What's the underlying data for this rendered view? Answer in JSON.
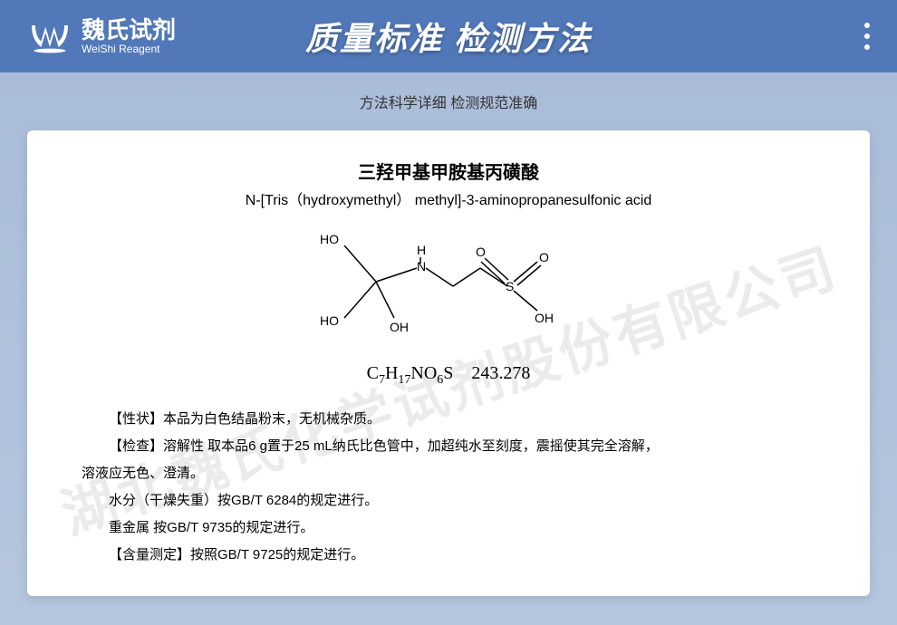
{
  "header": {
    "logo_cn": "魏氏试剂",
    "logo_en": "WeiShi Reagent",
    "title": "质量标准 检测方法"
  },
  "subtitle": "方法科学详细 检测规范准确",
  "compound": {
    "name_cn": "三羟甲基甲胺基丙磺酸",
    "name_en": "N-[Tris（hydroxymethyl） methyl]-3-aminopropanesulfonic acid",
    "formula_html": "C<sub>7</sub>H<sub>17</sub>NO<sub>6</sub>S 243.278",
    "structure_labels": {
      "ho1": "HO",
      "ho2": "HO",
      "oh": "OH",
      "nh": "H",
      "n": "N",
      "so_o1": "O",
      "so_o2": "O",
      "so_oh": "OH",
      "s": "S"
    }
  },
  "info": {
    "p1": "【性状】本品为白色结晶粉末，无机械杂质。",
    "p2": "【检查】溶解性  取本品6 g置于25 mL纳氏比色管中，加超纯水至刻度，震摇使其完全溶解，",
    "p3": "溶液应无色、澄清。",
    "p4": "水分（干燥失重）按GB/T 6284的规定进行。",
    "p5": "重金属  按GB/T 9735的规定进行。",
    "p6": "【含量测定】按照GB/T 9725的规定进行。"
  },
  "watermark": "湖北魏氏化学试剂股份有限公司",
  "colors": {
    "header_bg": "#5178b8",
    "body_bg_top": "#a8bbd8",
    "body_bg_bot": "#b5c6de",
    "text": "#000000",
    "subtitle": "#333333",
    "watermark": "rgba(0,0,0,0.08)"
  }
}
